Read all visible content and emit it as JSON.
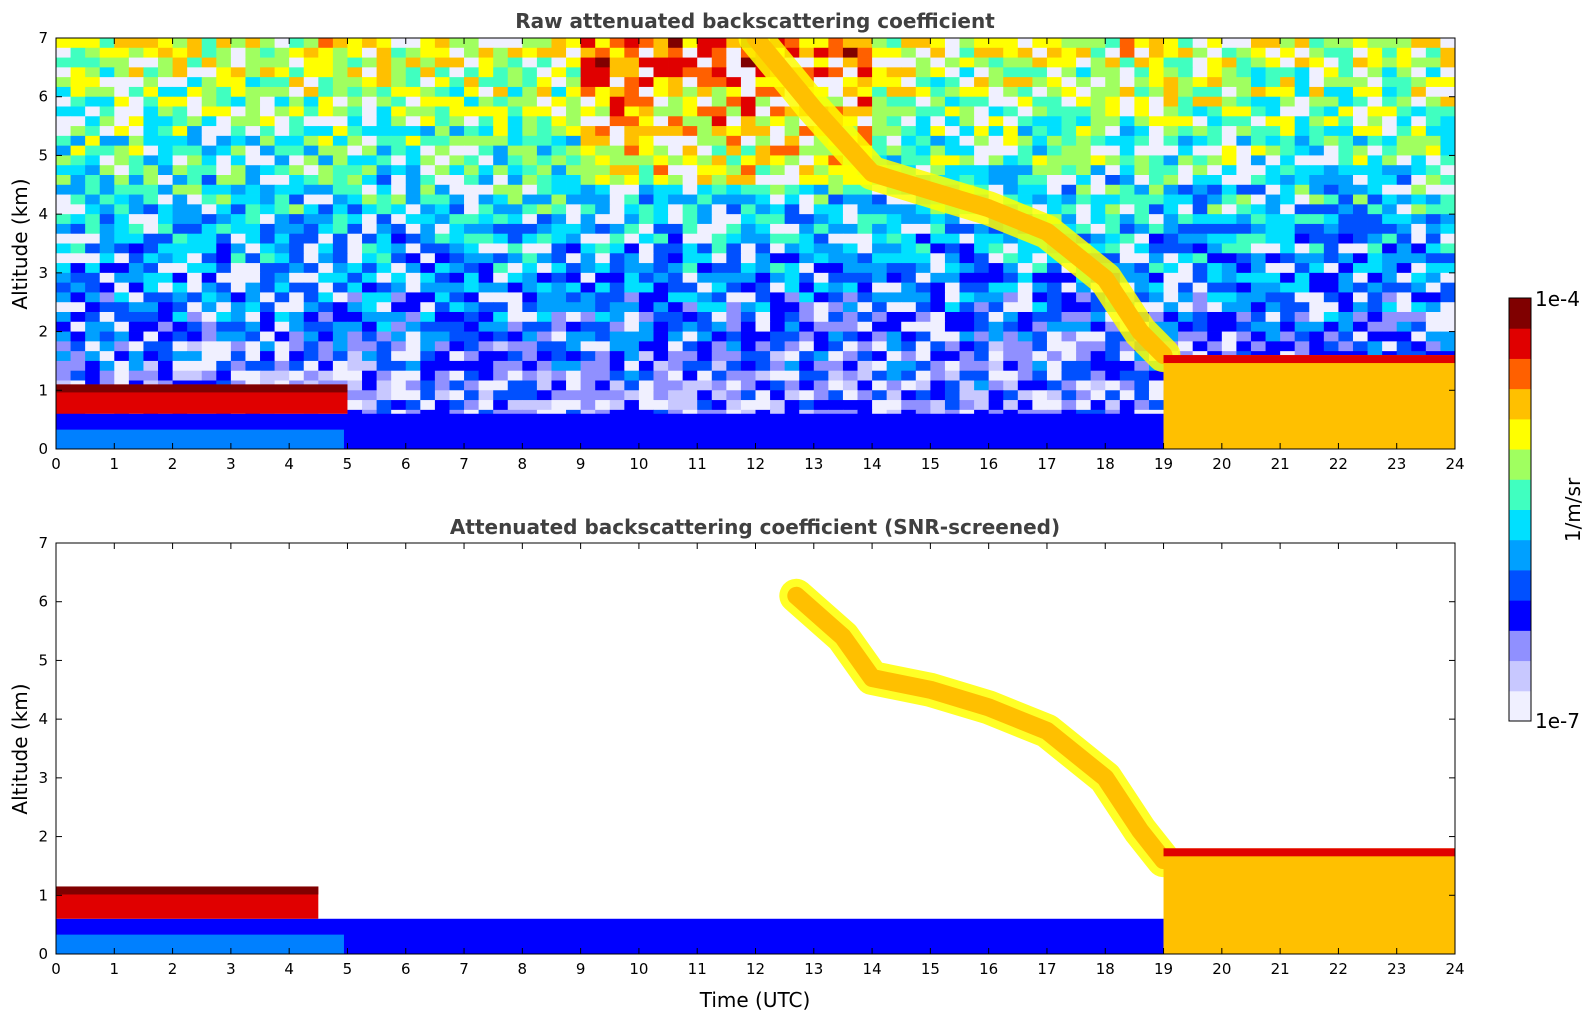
{
  "chart_data": [
    {
      "type": "heatmap",
      "title": "Raw attenuated backscattering coefficient",
      "xlabel": "",
      "ylabel": "Altitude (km)",
      "xlim": [
        0,
        24
      ],
      "ylim": [
        0,
        7
      ],
      "x_ticks": [
        "0",
        "1",
        "2",
        "3",
        "4",
        "5",
        "6",
        "7",
        "8",
        "9",
        "10",
        "11",
        "12",
        "13",
        "14",
        "15",
        "16",
        "17",
        "18",
        "19",
        "20",
        "21",
        "22",
        "23",
        "24"
      ],
      "y_ticks": [
        "0",
        "1",
        "2",
        "3",
        "4",
        "5",
        "6",
        "7"
      ],
      "features": [
        {
          "region": "boundary layer",
          "x_range": [
            0,
            19
          ],
          "top_km": 0.6,
          "value_level": 0.25
        },
        {
          "region": "aerosol layer top",
          "x_range": [
            0,
            5
          ],
          "y_range": [
            0.6,
            1.1
          ],
          "value_level": 0.95
        },
        {
          "region": "descending cloud",
          "path": [
            [
              12.0,
              7.0
            ],
            [
              13.0,
              5.8
            ],
            [
              14.0,
              4.7
            ],
            [
              15.0,
              4.4
            ],
            [
              16.0,
              4.1
            ],
            [
              17.0,
              3.7
            ],
            [
              18.0,
              2.9
            ],
            [
              18.6,
              2.0
            ],
            [
              19.0,
              1.6
            ]
          ],
          "value_level": 0.8
        },
        {
          "region": "low cloud",
          "x_range": [
            19,
            24
          ],
          "y_range": [
            0,
            1.6
          ],
          "value_level": 0.75
        }
      ]
    },
    {
      "type": "heatmap",
      "title": "Attenuated backscattering coefficient (SNR-screened)",
      "xlabel": "Time (UTC)",
      "ylabel": "Altitude (km)",
      "xlim": [
        0,
        24
      ],
      "ylim": [
        0,
        7
      ],
      "x_ticks": [
        "0",
        "1",
        "2",
        "3",
        "4",
        "5",
        "6",
        "7",
        "8",
        "9",
        "10",
        "11",
        "12",
        "13",
        "14",
        "15",
        "16",
        "17",
        "18",
        "19",
        "20",
        "21",
        "22",
        "23",
        "24"
      ],
      "y_ticks": [
        "0",
        "1",
        "2",
        "3",
        "4",
        "5",
        "6",
        "7"
      ],
      "features": [
        {
          "region": "boundary layer",
          "x_range": [
            0,
            19
          ],
          "top_km": 0.6,
          "value_level": 0.25
        },
        {
          "region": "aerosol layer top",
          "x_range": [
            0,
            4.5
          ],
          "y_range": [
            0.6,
            1.15
          ],
          "value_level": 0.9
        },
        {
          "region": "descending cloud",
          "path": [
            [
              12.7,
              6.1
            ],
            [
              13.5,
              5.4
            ],
            [
              14.0,
              4.7
            ],
            [
              15.0,
              4.5
            ],
            [
              16.0,
              4.2
            ],
            [
              17.0,
              3.8
            ],
            [
              18.0,
              3.0
            ],
            [
              18.6,
              2.1
            ],
            [
              19.0,
              1.6
            ]
          ],
          "value_level": 0.8
        },
        {
          "region": "low cloud",
          "x_range": [
            19,
            24
          ],
          "y_range": [
            0,
            1.8
          ],
          "value_level": 0.75
        }
      ]
    }
  ],
  "colorbar": {
    "max_label": "1e-4",
    "min_label": "1e-7",
    "unit_label": "1/m/sr",
    "colors": [
      "#f0f0ff",
      "#c8c8ff",
      "#9090ff",
      "#0000ff",
      "#0050ff",
      "#00a0ff",
      "#00e0ff",
      "#40ffc0",
      "#a0ff60",
      "#ffff00",
      "#ffc000",
      "#ff6000",
      "#e00000",
      "#800000"
    ]
  }
}
